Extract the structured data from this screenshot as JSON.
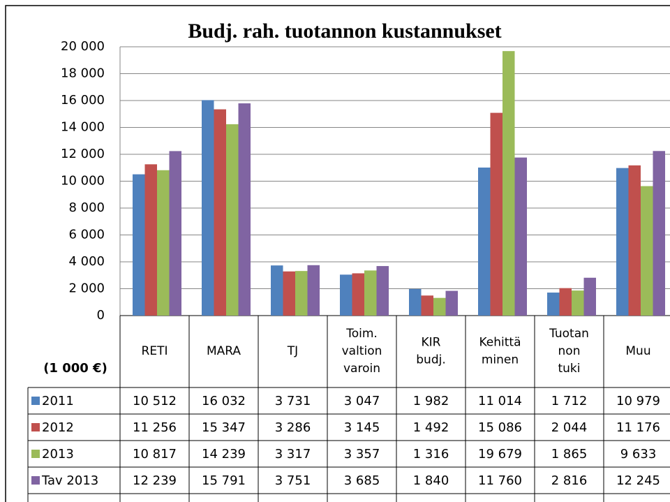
{
  "chart_data": {
    "type": "bar",
    "title": "Budj. rah. tuotannon kustannukset",
    "ylabel": "(1 000 €)",
    "categories": [
      [
        "RETI"
      ],
      [
        "MARA"
      ],
      [
        "TJ"
      ],
      [
        "Toim.",
        "valtion",
        "varoin"
      ],
      [
        "KIR",
        "budj."
      ],
      [
        "Kehittä",
        "minen"
      ],
      [
        "Tuotan",
        "non",
        "tuki"
      ],
      [
        "Muu"
      ]
    ],
    "series": [
      {
        "name": "2011",
        "color": "#4f81bd",
        "values": [
          10512,
          16032,
          3731,
          3047,
          1982,
          11014,
          1712,
          10979
        ],
        "value_labels": [
          "10 512",
          "16 032",
          "3 731",
          "3 047",
          "1 982",
          "11 014",
          "1 712",
          "10 979"
        ]
      },
      {
        "name": "2012",
        "color": "#c0504d",
        "values": [
          11256,
          15347,
          3286,
          3145,
          1492,
          15086,
          2044,
          11176
        ],
        "value_labels": [
          "11 256",
          "15 347",
          "3 286",
          "3 145",
          "1 492",
          "15 086",
          "2 044",
          "11 176"
        ]
      },
      {
        "name": "2013",
        "color": "#9bbb59",
        "values": [
          10817,
          14239,
          3317,
          3357,
          1316,
          19679,
          1865,
          9633
        ],
        "value_labels": [
          "10 817",
          "14 239",
          "3 317",
          "3 357",
          "1 316",
          "19 679",
          "1 865",
          "9 633"
        ]
      },
      {
        "name": "Tav 2013",
        "color": "#8064a2",
        "values": [
          12239,
          15791,
          3751,
          3685,
          1840,
          11760,
          2816,
          12245
        ],
        "value_labels": [
          "12 239",
          "15 791",
          "3 751",
          "3 685",
          "1 840",
          "11 760",
          "2 816",
          "12 245"
        ]
      }
    ],
    "ylim": [
      0,
      20000
    ],
    "yticks": [
      0,
      {
        "value": 2000,
        "label": "2 000"
      },
      {
        "value": 4000,
        "label": "4 000"
      },
      {
        "value": 6000,
        "label": "6 000"
      },
      {
        "value": 8000,
        "label": "8 000"
      },
      {
        "value": 10000,
        "label": "10 000"
      },
      {
        "value": 12000,
        "label": "12 000"
      },
      {
        "value": 14000,
        "label": "14 000"
      },
      {
        "value": 16000,
        "label": "16 000"
      },
      {
        "value": 18000,
        "label": "18 000"
      },
      {
        "value": 20000,
        "label": "20 000"
      }
    ],
    "grid": true
  }
}
